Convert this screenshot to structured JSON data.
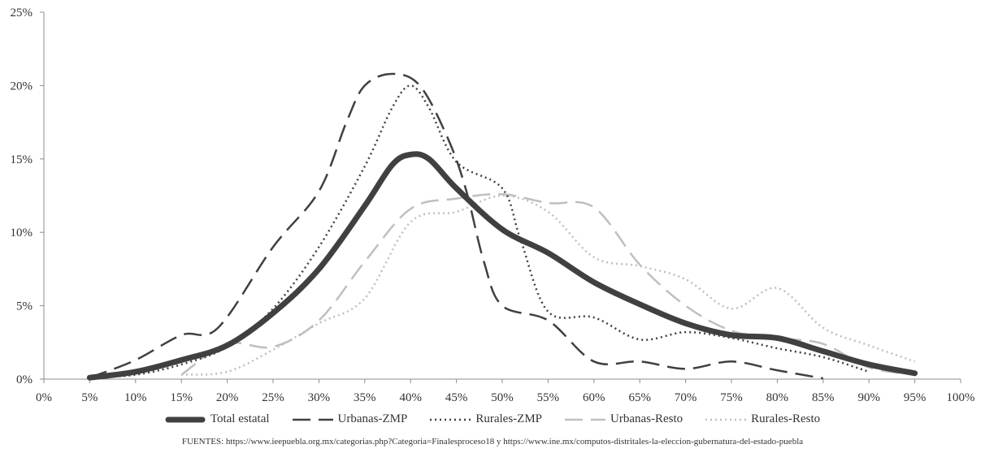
{
  "chart_data": {
    "type": "line",
    "smooth": true,
    "xlim": [
      0,
      100
    ],
    "ylim": [
      0,
      25
    ],
    "x_ticks": [
      "0%",
      "5%",
      "10%",
      "15%",
      "20%",
      "25%",
      "30%",
      "35%",
      "40%",
      "45%",
      "50%",
      "55%",
      "60%",
      "65%",
      "70%",
      "75%",
      "80%",
      "85%",
      "90%",
      "95%",
      "100%"
    ],
    "y_ticks": [
      "0%",
      "5%",
      "10%",
      "15%",
      "20%",
      "25%"
    ],
    "grid": false,
    "legend_position": "bottom",
    "series": [
      {
        "name": "Total estatal",
        "color": "#404040",
        "dash": "solid",
        "points": [
          [
            5,
            0.1
          ],
          [
            10,
            0.5
          ],
          [
            15,
            1.3
          ],
          [
            20,
            2.3
          ],
          [
            25,
            4.5
          ],
          [
            30,
            7.5
          ],
          [
            35,
            11.8
          ],
          [
            38,
            14.6
          ],
          [
            40,
            15.3
          ],
          [
            42,
            15.0
          ],
          [
            45,
            13.0
          ],
          [
            50,
            10.2
          ],
          [
            55,
            8.6
          ],
          [
            60,
            6.6
          ],
          [
            65,
            5.1
          ],
          [
            70,
            3.8
          ],
          [
            75,
            3.0
          ],
          [
            80,
            2.8
          ],
          [
            85,
            1.9
          ],
          [
            90,
            1.0
          ],
          [
            95,
            0.4
          ]
        ]
      },
      {
        "name": "Urbanas-ZMP",
        "color": "#404040",
        "dash": "long-dash",
        "points": [
          [
            5,
            0.1
          ],
          [
            10,
            1.3
          ],
          [
            15,
            3.0
          ],
          [
            19,
            3.5
          ],
          [
            25,
            9.0
          ],
          [
            30,
            12.8
          ],
          [
            33,
            17.5
          ],
          [
            35,
            20.0
          ],
          [
            38,
            20.8
          ],
          [
            41,
            20.0
          ],
          [
            44,
            16.5
          ],
          [
            46,
            13.0
          ],
          [
            48,
            8.0
          ],
          [
            50,
            5.0
          ],
          [
            55,
            4.0
          ],
          [
            60,
            1.2
          ],
          [
            65,
            1.2
          ],
          [
            70,
            0.7
          ],
          [
            75,
            1.2
          ],
          [
            80,
            0.6
          ],
          [
            85,
            0.05
          ]
        ]
      },
      {
        "name": "Rurales-ZMP",
        "color": "#404040",
        "dash": "dotted",
        "points": [
          [
            5,
            0.1
          ],
          [
            10,
            0.3
          ],
          [
            15,
            1.0
          ],
          [
            20,
            2.2
          ],
          [
            25,
            4.8
          ],
          [
            30,
            9.0
          ],
          [
            35,
            14.5
          ],
          [
            38,
            18.5
          ],
          [
            40,
            20.0
          ],
          [
            42,
            18.5
          ],
          [
            45,
            14.8
          ],
          [
            50,
            13.0
          ],
          [
            52,
            9.5
          ],
          [
            55,
            4.6
          ],
          [
            60,
            4.2
          ],
          [
            65,
            2.7
          ],
          [
            70,
            3.2
          ],
          [
            75,
            2.8
          ],
          [
            80,
            2.1
          ],
          [
            85,
            1.5
          ],
          [
            90,
            0.5
          ]
        ]
      },
      {
        "name": "Urbanas-Resto",
        "color": "#bfbfbf",
        "dash": "long-dash",
        "points": [
          [
            15,
            0.3
          ],
          [
            20,
            2.4
          ],
          [
            25,
            2.2
          ],
          [
            30,
            4.0
          ],
          [
            35,
            8.0
          ],
          [
            40,
            11.6
          ],
          [
            45,
            12.3
          ],
          [
            50,
            12.6
          ],
          [
            55,
            12.0
          ],
          [
            60,
            11.7
          ],
          [
            65,
            7.8
          ],
          [
            70,
            5.0
          ],
          [
            75,
            3.3
          ],
          [
            80,
            2.8
          ],
          [
            85,
            2.4
          ],
          [
            90,
            0.8
          ],
          [
            95,
            0.3
          ]
        ]
      },
      {
        "name": "Rurales-Resto",
        "color": "#bfbfbf",
        "dash": "dotted",
        "points": [
          [
            15,
            0.3
          ],
          [
            20,
            0.5
          ],
          [
            25,
            2.0
          ],
          [
            30,
            3.8
          ],
          [
            35,
            5.5
          ],
          [
            40,
            10.7
          ],
          [
            45,
            11.4
          ],
          [
            50,
            12.5
          ],
          [
            55,
            11.4
          ],
          [
            60,
            8.3
          ],
          [
            65,
            7.7
          ],
          [
            70,
            6.8
          ],
          [
            75,
            4.8
          ],
          [
            80,
            6.2
          ],
          [
            85,
            3.5
          ],
          [
            90,
            2.3
          ],
          [
            95,
            1.2
          ]
        ]
      }
    ]
  },
  "source_text": "FUENTES: https://www.ieepuebla.org.mx/categorias.php?Categoria=Finalesproceso18 y https://www.ine.mx/computos-distritales-la-eleccion-gubernatura-del-estado-puebla"
}
